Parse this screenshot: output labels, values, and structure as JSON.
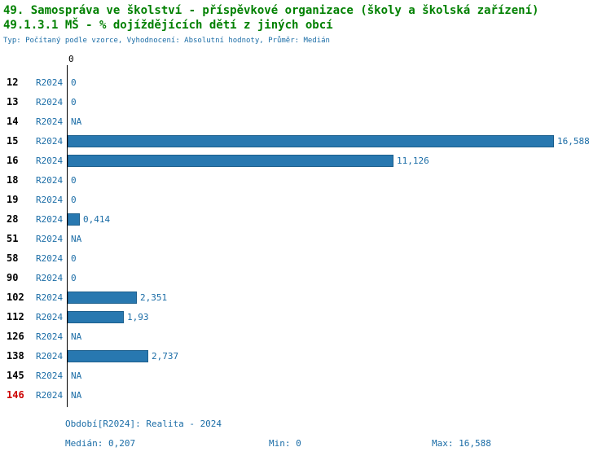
{
  "header": {
    "title1": "49. Samospráva ve školství - příspěvkové organizace (školy a školská zařízení)",
    "title2": "49.1.3.1 MŠ - % dojíždějících dětí z jiných obcí",
    "subtitle": "Typ: Počítaný podle vzorce, Vyhodnocení: Absolutní hodnoty, Průměr: Medián"
  },
  "colors": {
    "title_green": "#008000",
    "text_blue": "#1a6ca6",
    "bar_fill": "#2878b0",
    "bar_border": "#1d5f8c",
    "row_label": "#000000",
    "row_label_alert": "#cc0000",
    "axis": "#000000"
  },
  "chart_data": {
    "type": "bar",
    "orientation": "horizontal",
    "period": "R2024",
    "axis_top_label": "0",
    "value_axis_min": 0,
    "value_axis_max": 16.588,
    "rows": [
      {
        "label": "12",
        "value": 0,
        "display": "0"
      },
      {
        "label": "13",
        "value": 0,
        "display": "0"
      },
      {
        "label": "14",
        "value": null,
        "display": "NA"
      },
      {
        "label": "15",
        "value": 16.588,
        "display": "16,588"
      },
      {
        "label": "16",
        "value": 11.126,
        "display": "11,126"
      },
      {
        "label": "18",
        "value": 0,
        "display": "0"
      },
      {
        "label": "19",
        "value": 0,
        "display": "0"
      },
      {
        "label": "28",
        "value": 0.414,
        "display": "0,414"
      },
      {
        "label": "51",
        "value": null,
        "display": "NA"
      },
      {
        "label": "58",
        "value": 0,
        "display": "0"
      },
      {
        "label": "90",
        "value": 0,
        "display": "0"
      },
      {
        "label": "102",
        "value": 2.351,
        "display": "2,351"
      },
      {
        "label": "112",
        "value": 1.93,
        "display": "1,93"
      },
      {
        "label": "126",
        "value": null,
        "display": "NA"
      },
      {
        "label": "138",
        "value": 2.737,
        "display": "2,737"
      },
      {
        "label": "145",
        "value": null,
        "display": "NA"
      },
      {
        "label": "146",
        "value": null,
        "display": "NA",
        "alert": true
      }
    ]
  },
  "footer": {
    "period_line": "Období[R2024]: Realita - 2024",
    "median_label": "Medián: 0,207",
    "min_label": "Min: 0",
    "max_label": "Max: 16,588"
  }
}
